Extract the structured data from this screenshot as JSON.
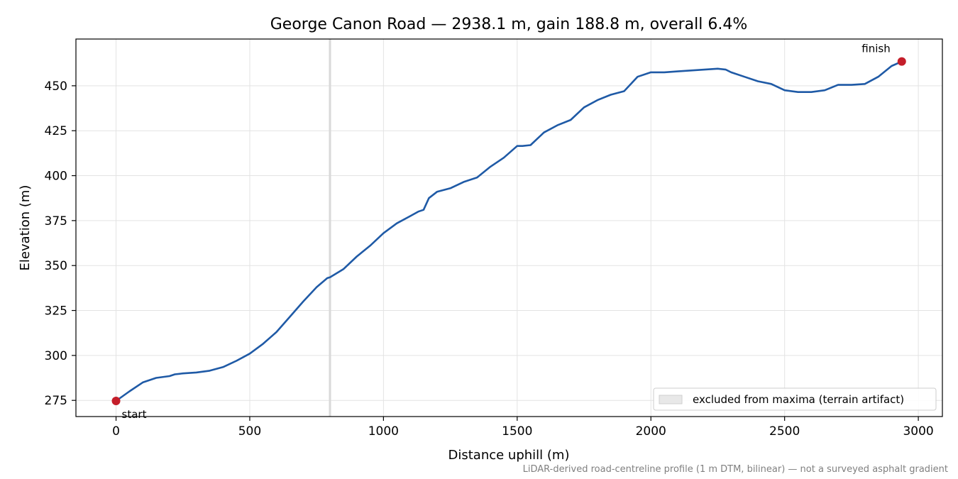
{
  "chart_data": {
    "type": "line",
    "title": "George Canon Road — 2938.1 m, gain 188.8 m, overall 6.4%",
    "xlabel": "Distance uphill (m)",
    "ylabel": "Elevation (m)",
    "footnote": "LiDAR-derived road-centreline profile (1 m DTM, bilinear) — not a surveyed asphalt gradient",
    "xlim": [
      -150,
      3090
    ],
    "ylim": [
      266,
      476
    ],
    "x_ticks": [
      0,
      500,
      1000,
      1500,
      2000,
      2500,
      3000
    ],
    "y_ticks": [
      275,
      300,
      325,
      350,
      375,
      400,
      425,
      450
    ],
    "grid": true,
    "legend": {
      "placement": "lower-right",
      "entries": [
        "excluded from maxima (terrain artifact)"
      ]
    },
    "excluded_region": {
      "x": 800
    },
    "series": [
      {
        "color": "#1f5aa6",
        "x": [
          0,
          50,
          100,
          150,
          200,
          220,
          250,
          300,
          350,
          400,
          450,
          500,
          550,
          600,
          650,
          700,
          750,
          790,
          800,
          850,
          900,
          950,
          1000,
          1050,
          1100,
          1130,
          1150,
          1170,
          1200,
          1250,
          1300,
          1350,
          1400,
          1450,
          1500,
          1520,
          1550,
          1600,
          1650,
          1700,
          1750,
          1800,
          1850,
          1900,
          1950,
          2000,
          2050,
          2100,
          2150,
          2200,
          2250,
          2280,
          2300,
          2350,
          2400,
          2450,
          2500,
          2550,
          2600,
          2650,
          2700,
          2750,
          2800,
          2850,
          2900,
          2938.1
        ],
        "y": [
          274.7,
          280,
          285,
          287.5,
          288.5,
          289.5,
          290,
          290.5,
          291.5,
          293.5,
          297,
          301,
          306.5,
          313,
          321.5,
          330,
          338,
          343,
          343.5,
          348,
          355,
          361,
          368,
          373.5,
          377.5,
          380,
          381,
          387.5,
          391,
          393,
          396.5,
          399,
          405,
          410,
          416.5,
          416.5,
          417,
          424,
          428,
          431,
          438,
          442,
          445,
          447,
          455,
          457.5,
          457.5,
          458,
          458.5,
          459,
          459.5,
          459,
          457.5,
          455,
          452.5,
          451,
          447.5,
          446.5,
          446.5,
          447.5,
          450.5,
          450.5,
          451,
          455,
          461,
          463.5
        ]
      }
    ],
    "points": [
      {
        "label": "start",
        "x": 0,
        "y": 274.7,
        "color": "#c41e2a"
      },
      {
        "label": "finish",
        "x": 2938.1,
        "y": 463.5,
        "color": "#c41e2a"
      }
    ]
  }
}
